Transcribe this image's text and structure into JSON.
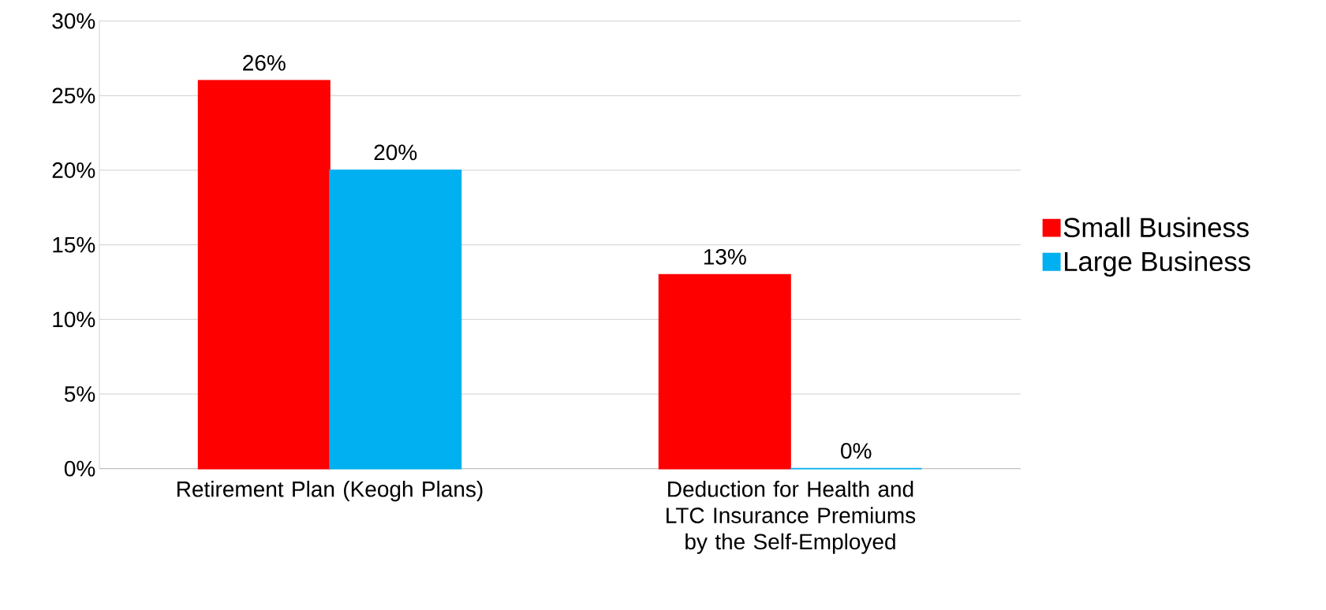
{
  "chart_data": {
    "type": "bar",
    "categories": [
      "Retirement Plan (Keogh Plans)",
      "Deduction for Health and LTC Insurance Premiums by the Self-Employed"
    ],
    "series": [
      {
        "name": "Small Business",
        "color": "#ff0000",
        "values": [
          26,
          13
        ],
        "value_labels": [
          "26%",
          "13%"
        ]
      },
      {
        "name": "Large Business",
        "color": "#00b0f0",
        "values": [
          20,
          0
        ],
        "value_labels": [
          "20%",
          "0%"
        ]
      }
    ],
    "ylim": [
      0,
      30
    ],
    "yticks": [
      {
        "value": 0,
        "label": "0%"
      },
      {
        "value": 5,
        "label": "5%"
      },
      {
        "value": 10,
        "label": "10%"
      },
      {
        "value": 15,
        "label": "15%"
      },
      {
        "value": 20,
        "label": "20%"
      },
      {
        "value": 25,
        "label": "25%"
      },
      {
        "value": 30,
        "label": "30%"
      }
    ],
    "grid": "y",
    "legend": "right"
  }
}
